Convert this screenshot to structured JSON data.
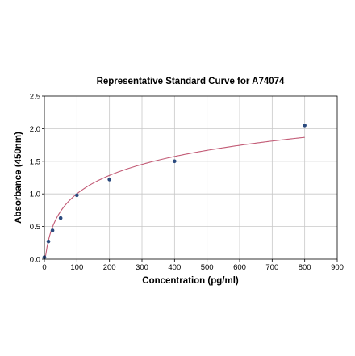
{
  "chart_data": {
    "type": "scatter",
    "title": "Representative Standard Curve for A74074",
    "xlabel": "Concentration (pg/ml)",
    "ylabel": "Absorbance (450nm)",
    "xlim": [
      0,
      900
    ],
    "ylim": [
      0,
      2.5
    ],
    "x_ticks": [
      "0",
      "100",
      "200",
      "300",
      "400",
      "500",
      "600",
      "700",
      "800",
      "900"
    ],
    "y_ticks": [
      "0.0",
      "0.5",
      "1.0",
      "1.5",
      "2.0",
      "2.5"
    ],
    "grid": true,
    "points": [
      {
        "x": 0,
        "y": 0.03
      },
      {
        "x": 12.5,
        "y": 0.27
      },
      {
        "x": 25,
        "y": 0.44
      },
      {
        "x": 50,
        "y": 0.63
      },
      {
        "x": 100,
        "y": 0.98
      },
      {
        "x": 200,
        "y": 1.22
      },
      {
        "x": 400,
        "y": 1.5
      },
      {
        "x": 800,
        "y": 2.05
      }
    ],
    "point_color": "#2b4a7e",
    "curve_color": "#c25a75"
  }
}
